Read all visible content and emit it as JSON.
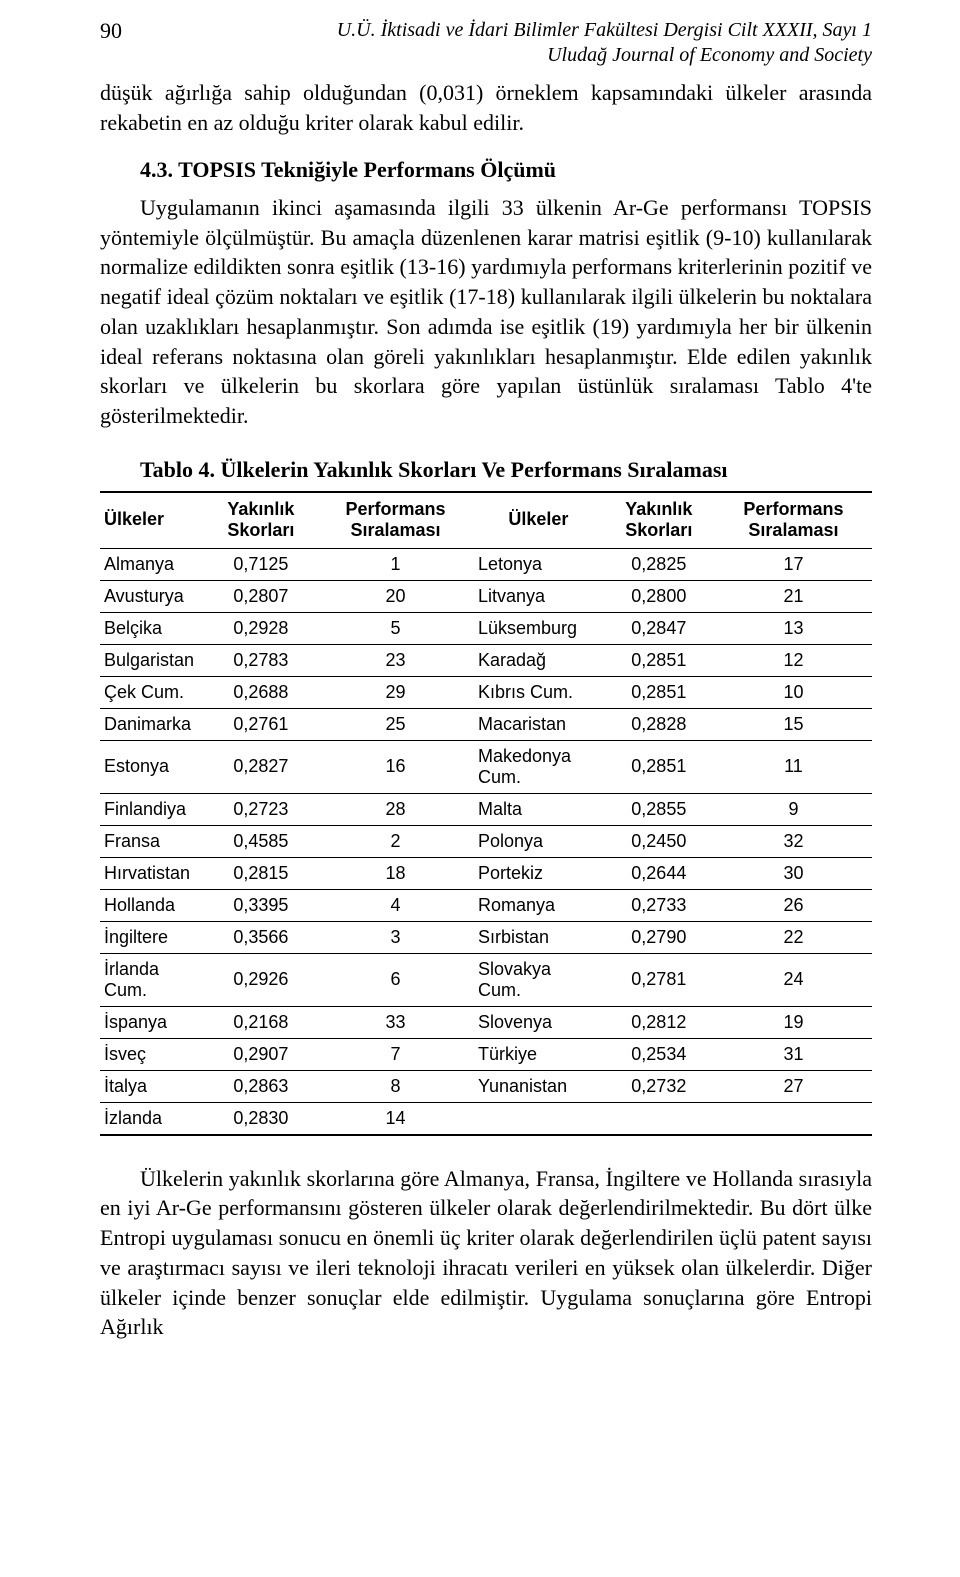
{
  "page_number": "90",
  "header_line1": "U.Ü. İktisadi ve İdari Bilimler Fakültesi Dergisi Cilt XXXII, Sayı 1",
  "header_line2": "Uludağ Journal of Economy and Society",
  "para1": "düşük ağırlığa sahip olduğundan (0,031) örneklem kapsamındaki ülkeler arasında rekabetin en az olduğu kriter olarak kabul edilir.",
  "section_heading": "4.3. TOPSIS Tekniğiyle Performans Ölçümü",
  "para2": "Uygulamanın ikinci aşamasında ilgili 33 ülkenin Ar-Ge performansı TOPSIS yöntemiyle ölçülmüştür. Bu amaçla düzenlenen karar matrisi eşitlik (9-10) kullanılarak normalize edildikten sonra eşitlik (13-16) yardımıyla performans kriterlerinin pozitif ve negatif ideal çözüm noktaları ve eşitlik (17-18) kullanılarak ilgili ülkelerin bu noktalara olan uzaklıkları hesaplanmıştır. Son adımda ise eşitlik (19) yardımıyla her bir ülkenin ideal referans noktasına olan göreli yakınlıkları hesaplanmıştır. Elde edilen yakınlık skorları ve ülkelerin bu skorlara göre yapılan üstünlük sıralaması Tablo 4'te gösterilmektedir.",
  "table_caption": "Tablo 4. Ülkelerin Yakınlık Skorları Ve Performans Sıralaması",
  "table": {
    "headers": {
      "country": "Ülkeler",
      "score": "Yakınlık Skorları",
      "rank": "Performans Sıralaması"
    },
    "rows": [
      {
        "c1": "Almanya",
        "s1": "0,7125",
        "r1": "1",
        "c2": "Letonya",
        "s2": "0,2825",
        "r2": "17"
      },
      {
        "c1": "Avusturya",
        "s1": "0,2807",
        "r1": "20",
        "c2": "Litvanya",
        "s2": "0,2800",
        "r2": "21"
      },
      {
        "c1": "Belçika",
        "s1": "0,2928",
        "r1": "5",
        "c2": "Lüksemburg",
        "s2": "0,2847",
        "r2": "13"
      },
      {
        "c1": "Bulgaristan",
        "s1": "0,2783",
        "r1": "23",
        "c2": "Karadağ",
        "s2": "0,2851",
        "r2": "12"
      },
      {
        "c1": "Çek Cum.",
        "s1": "0,2688",
        "r1": "29",
        "c2": "Kıbrıs Cum.",
        "s2": "0,2851",
        "r2": "10"
      },
      {
        "c1": "Danimarka",
        "s1": "0,2761",
        "r1": "25",
        "c2": "Macaristan",
        "s2": "0,2828",
        "r2": "15"
      },
      {
        "c1": "Estonya",
        "s1": "0,2827",
        "r1": "16",
        "c2": "Makedonya Cum.",
        "s2": "0,2851",
        "r2": "11"
      },
      {
        "c1": "Finlandiya",
        "s1": "0,2723",
        "r1": "28",
        "c2": "Malta",
        "s2": "0,2855",
        "r2": "9"
      },
      {
        "c1": "Fransa",
        "s1": "0,4585",
        "r1": "2",
        "c2": "Polonya",
        "s2": "0,2450",
        "r2": "32"
      },
      {
        "c1": "Hırvatistan",
        "s1": "0,2815",
        "r1": "18",
        "c2": "Portekiz",
        "s2": "0,2644",
        "r2": "30"
      },
      {
        "c1": "Hollanda",
        "s1": "0,3395",
        "r1": "4",
        "c2": "Romanya",
        "s2": "0,2733",
        "r2": "26"
      },
      {
        "c1": "İngiltere",
        "s1": "0,3566",
        "r1": "3",
        "c2": "Sırbistan",
        "s2": "0,2790",
        "r2": "22"
      },
      {
        "c1": "İrlanda Cum.",
        "s1": "0,2926",
        "r1": "6",
        "c2": "Slovakya Cum.",
        "s2": "0,2781",
        "r2": "24"
      },
      {
        "c1": "İspanya",
        "s1": "0,2168",
        "r1": "33",
        "c2": "Slovenya",
        "s2": "0,2812",
        "r2": "19"
      },
      {
        "c1": "İsveç",
        "s1": "0,2907",
        "r1": "7",
        "c2": "Türkiye",
        "s2": "0,2534",
        "r2": "31"
      },
      {
        "c1": "İtalya",
        "s1": "0,2863",
        "r1": "8",
        "c2": "Yunanistan",
        "s2": "0,2732",
        "r2": "27"
      },
      {
        "c1": "İzlanda",
        "s1": "0,2830",
        "r1": "14",
        "c2": "",
        "s2": "",
        "r2": ""
      }
    ]
  },
  "para3": "Ülkelerin yakınlık skorlarına göre Almanya, Fransa, İngiltere ve Hollanda sırasıyla en iyi Ar-Ge performansını gösteren ülkeler olarak değerlendirilmektedir. Bu dört ülke Entropi uygulaması sonucu en önemli üç kriter olarak değerlendirilen üçlü patent sayısı ve araştırmacı sayısı ve ileri teknoloji ihracatı verileri en yüksek olan ülkelerdir. Diğer ülkeler içinde benzer sonuçlar elde edilmiştir. Uygulama sonuçlarına göre Entropi Ağırlık"
}
